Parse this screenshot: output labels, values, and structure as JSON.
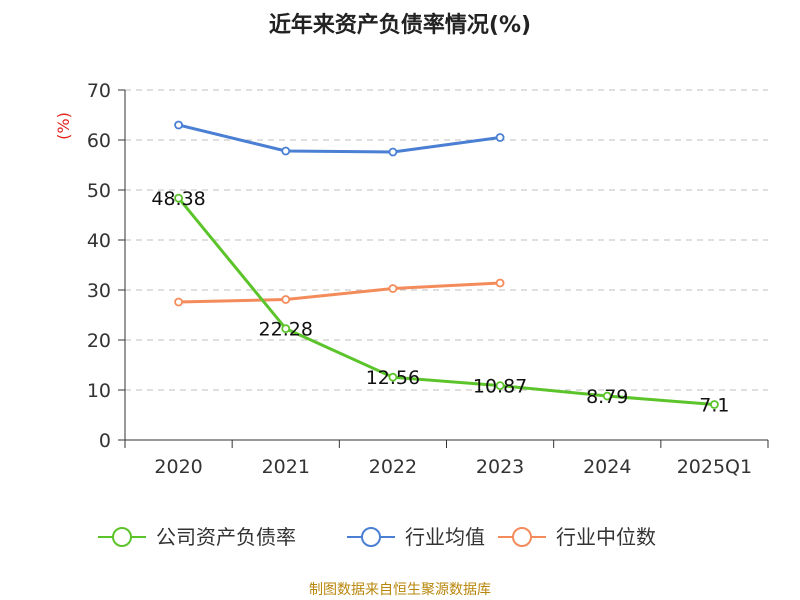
{
  "chart_data": {
    "type": "line",
    "title": "近年来资产负债率情况(%)",
    "ylabel": "(%)",
    "xlabel": "",
    "categories": [
      "2020",
      "2021",
      "2022",
      "2023",
      "2024",
      "2025Q1"
    ],
    "ylim": [
      0,
      70
    ],
    "yticks": [
      "0",
      "10",
      "20",
      "30",
      "40",
      "50",
      "60",
      "70"
    ],
    "grid": true,
    "legend_position": "bottom",
    "series": [
      {
        "name": "公司资产负债率",
        "color": "#5cc42b",
        "values": [
          48.38,
          22.28,
          12.56,
          10.87,
          8.79,
          7.1
        ],
        "labels": [
          "48.38",
          "22.28",
          "12.56",
          "10.87",
          "8.79",
          "7.1"
        ]
      },
      {
        "name": "行业均值",
        "color": "#4a7fd4",
        "values": [
          63.0,
          57.8,
          57.6,
          60.5,
          null,
          null
        ]
      },
      {
        "name": "行业中位数",
        "color": "#f48b5a",
        "values": [
          27.6,
          28.1,
          30.3,
          31.4,
          null,
          null
        ]
      }
    ]
  },
  "footer": {
    "source": "制图数据来自恒生聚源数据库"
  }
}
